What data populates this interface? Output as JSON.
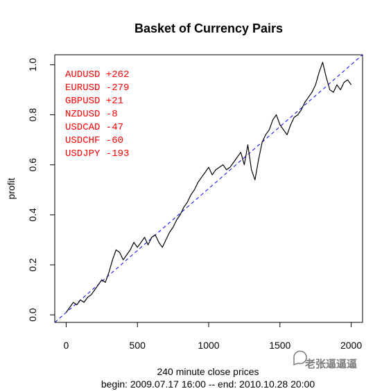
{
  "chart_data": {
    "type": "line",
    "title": "Basket of Currency Pairs",
    "xlabel": "240 minute close prices",
    "xlabel2": "begin: 2009.07.17 16:00 -- end: 2010.10.28 20:00",
    "ylabel": "profit",
    "xlim": [
      -80,
      2080
    ],
    "ylim": [
      -0.03,
      1.04
    ],
    "xticks": [
      0,
      500,
      1000,
      1500,
      2000
    ],
    "yticks": [
      "0.0",
      "0.2",
      "0.4",
      "0.6",
      "0.8",
      "1.0"
    ],
    "ytick_values": [
      0.0,
      0.2,
      0.4,
      0.6,
      0.8,
      1.0
    ],
    "line_color": "#000000",
    "trend_color": "#0000ff",
    "text_color": "#ff0000",
    "annotations": [
      "AUDUSD +262",
      "EURUSD -279",
      "GBPUSD +21",
      "NZDUSD -8",
      "USDCAD -47",
      "USDCHF -60",
      "USDJPY -193"
    ],
    "series": [
      {
        "x": [
          0,
          25,
          50,
          75,
          100,
          125,
          150,
          175,
          200,
          225,
          250,
          275,
          300,
          325,
          350,
          375,
          400,
          425,
          450,
          475,
          500,
          525,
          550,
          575,
          600,
          625,
          650,
          675,
          700,
          725,
          750,
          775,
          800,
          825,
          850,
          875,
          900,
          925,
          950,
          975,
          1000,
          1025,
          1050,
          1075,
          1100,
          1125,
          1150,
          1175,
          1200,
          1225,
          1250,
          1275,
          1300,
          1325,
          1350,
          1375,
          1400,
          1425,
          1450,
          1475,
          1500,
          1525,
          1550,
          1575,
          1600,
          1625,
          1650,
          1675,
          1700,
          1725,
          1750,
          1775,
          1800,
          1825,
          1850,
          1875,
          1900,
          1925,
          1950,
          1975,
          2000
        ],
        "y": [
          0.01,
          0.03,
          0.05,
          0.04,
          0.06,
          0.05,
          0.07,
          0.08,
          0.1,
          0.12,
          0.14,
          0.13,
          0.17,
          0.22,
          0.26,
          0.25,
          0.22,
          0.24,
          0.26,
          0.29,
          0.27,
          0.29,
          0.31,
          0.28,
          0.31,
          0.32,
          0.29,
          0.27,
          0.3,
          0.33,
          0.35,
          0.38,
          0.4,
          0.43,
          0.45,
          0.48,
          0.5,
          0.53,
          0.55,
          0.57,
          0.59,
          0.56,
          0.58,
          0.59,
          0.6,
          0.58,
          0.59,
          0.61,
          0.63,
          0.65,
          0.6,
          0.68,
          0.58,
          0.54,
          0.62,
          0.69,
          0.72,
          0.74,
          0.78,
          0.8,
          0.76,
          0.74,
          0.72,
          0.76,
          0.79,
          0.8,
          0.82,
          0.85,
          0.87,
          0.89,
          0.92,
          0.97,
          1.01,
          0.95,
          0.9,
          0.89,
          0.92,
          0.9,
          0.93,
          0.94,
          0.92
        ]
      }
    ],
    "trendline": {
      "x": [
        -80,
        2080
      ],
      "y": [
        -0.03,
        1.04
      ]
    }
  },
  "watermark": {
    "icon": "chat-bubble-icon",
    "text": "老张逼逼逼"
  }
}
